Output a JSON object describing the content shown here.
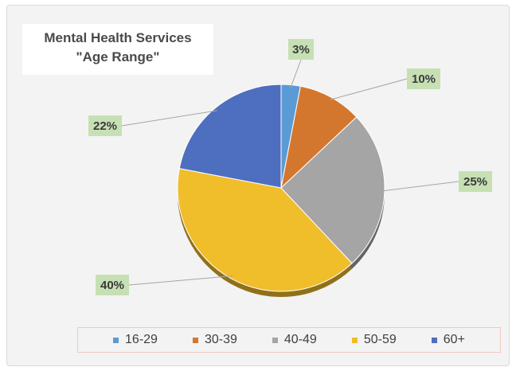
{
  "chart_data": {
    "type": "pie",
    "title": "Mental Health Services",
    "subtitle": "\"Age Range\"",
    "categories": [
      "16-29",
      "30-39",
      "40-49",
      "50-59",
      "60+"
    ],
    "values": [
      3,
      10,
      25,
      40,
      22
    ],
    "data_labels": [
      "3%",
      "10%",
      "25%",
      "40%",
      "22%"
    ],
    "colors": [
      "#5b9bd5",
      "#d4772e",
      "#a5a5a5",
      "#f0bd2b",
      "#4e6fbf"
    ],
    "label_background": "#c6e0b4",
    "legend_position": "bottom"
  }
}
